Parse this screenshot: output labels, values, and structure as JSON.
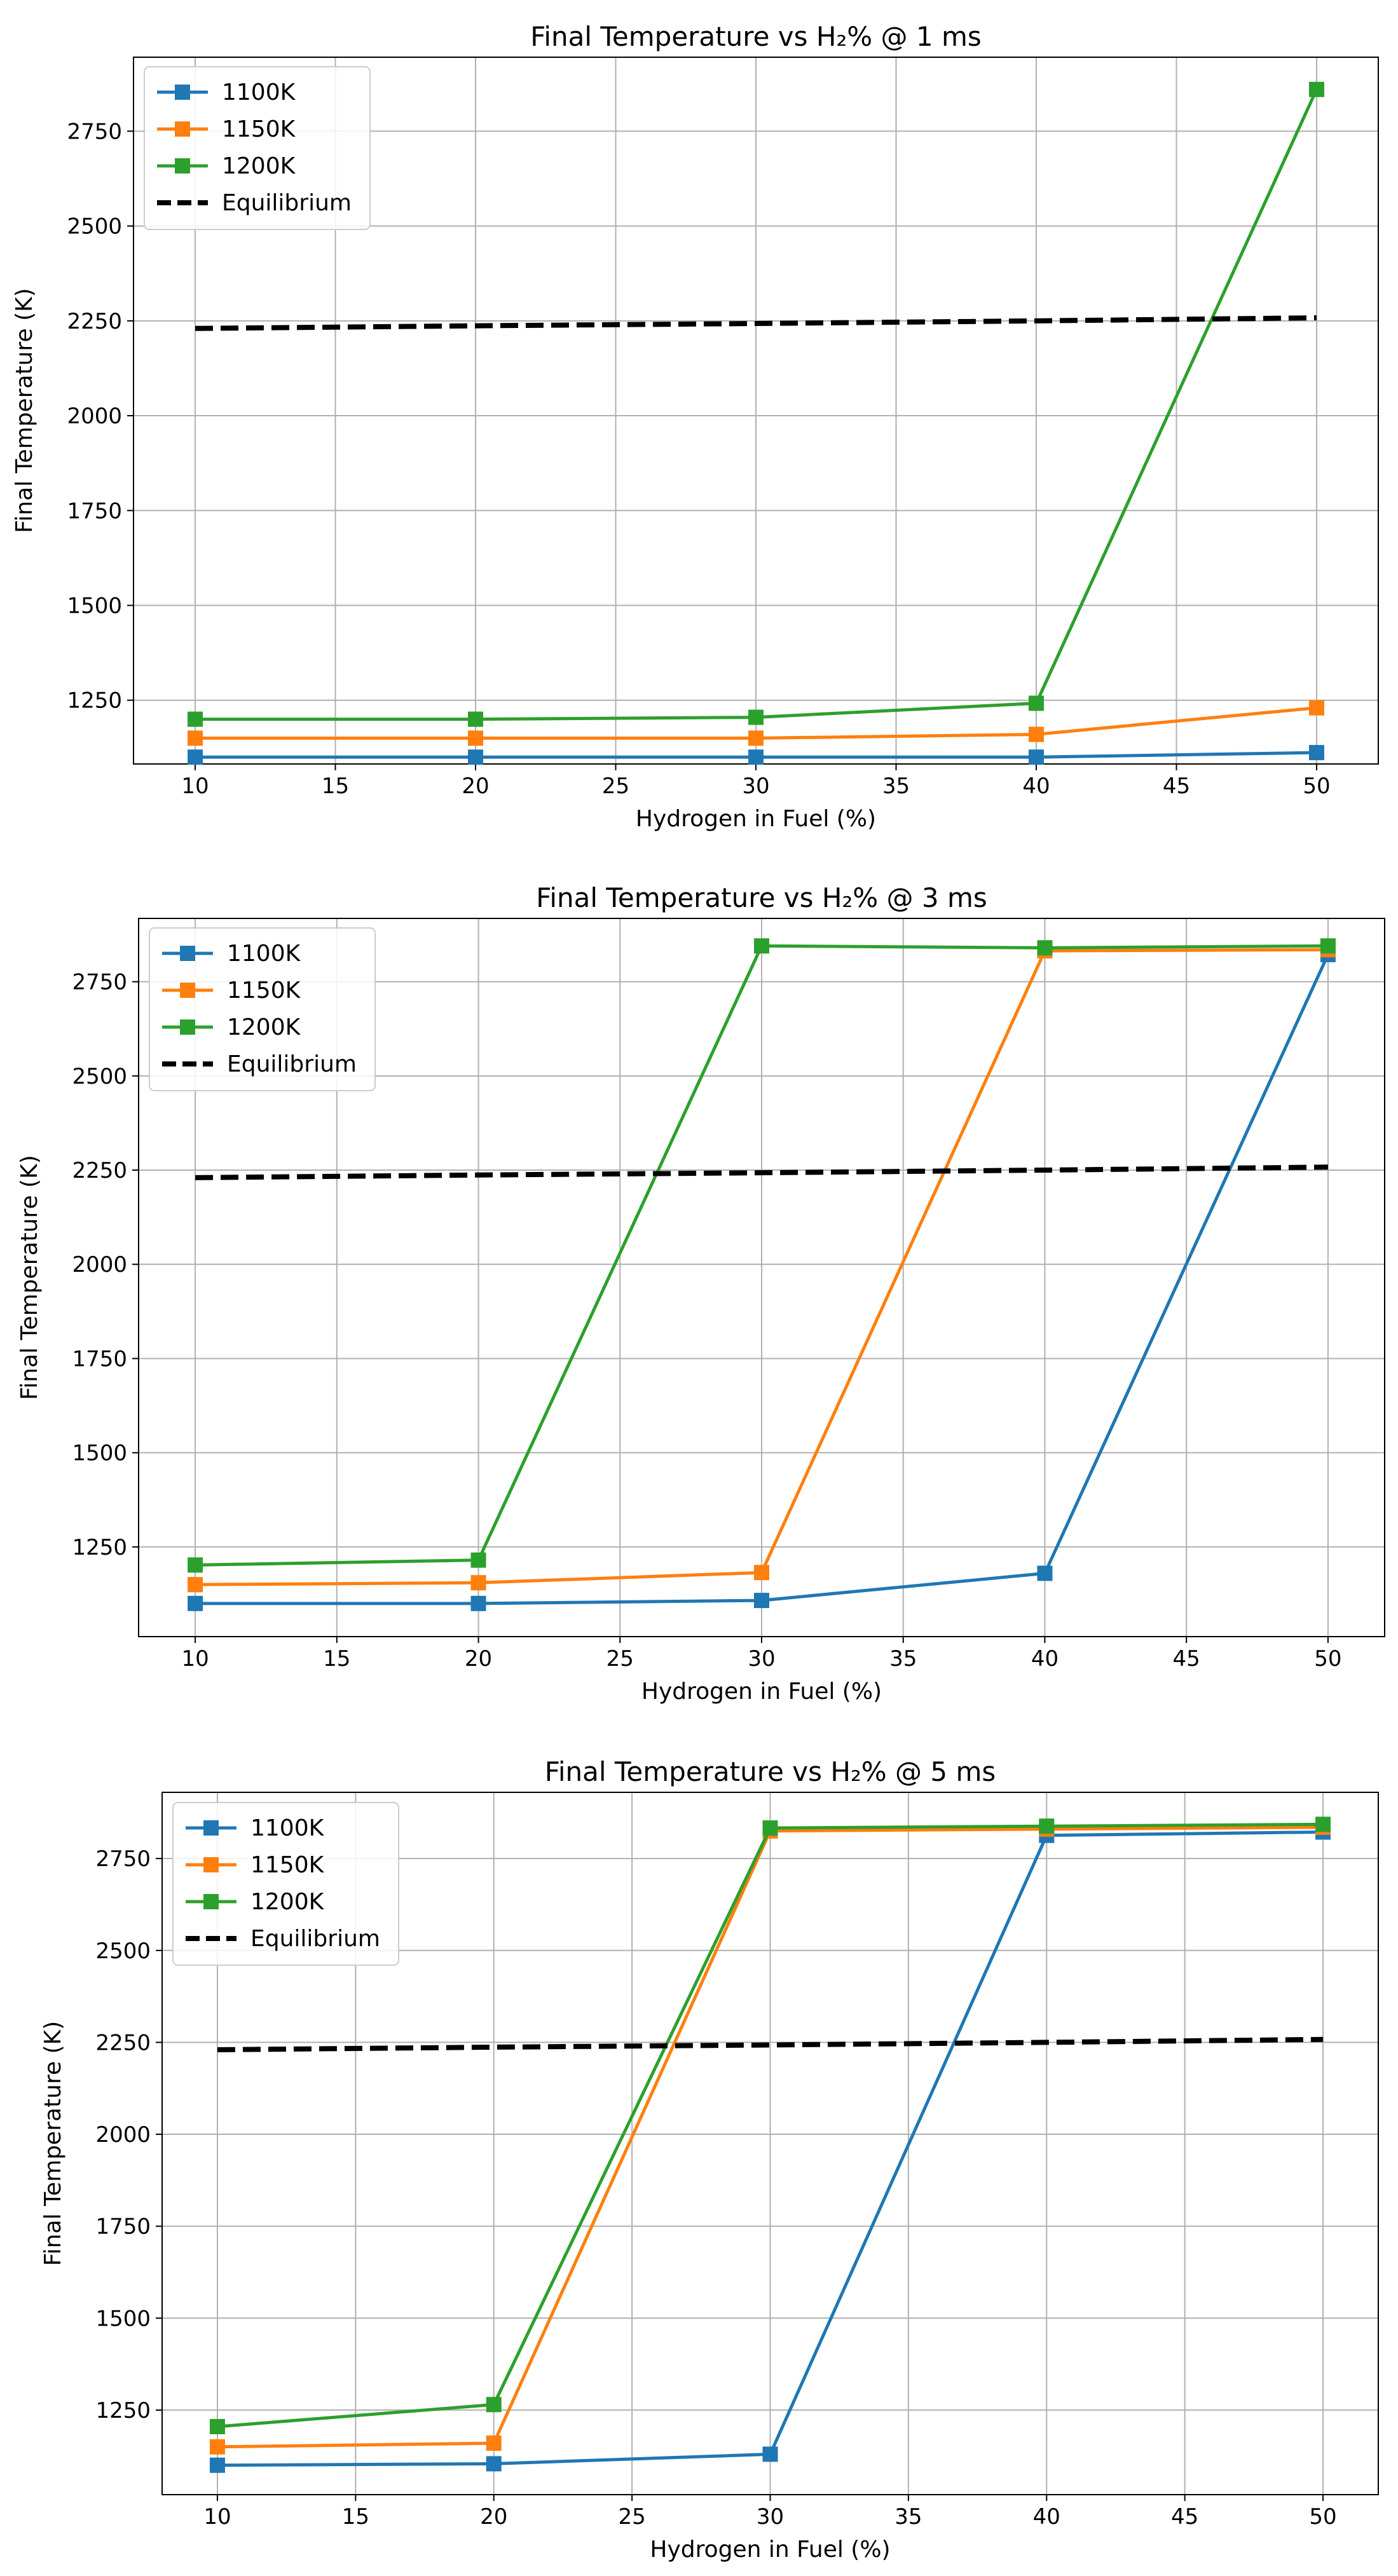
{
  "chart_data": [
    {
      "type": "line",
      "title": "Final Temperature vs H₂% @ 1 ms",
      "xlabel": "Hydrogen in Fuel (%)",
      "ylabel": "Final Temperature (K)",
      "xlim": [
        7.8,
        52.2
      ],
      "ylim": [
        1082,
        2945
      ],
      "xticks": [
        10,
        15,
        20,
        25,
        30,
        35,
        40,
        45,
        50
      ],
      "yticks": [
        1250,
        1500,
        1750,
        2000,
        2250,
        2500,
        2750
      ],
      "grid": true,
      "legend": "top-left",
      "x": [
        10,
        20,
        30,
        40,
        50
      ],
      "series": [
        {
          "name": "1100K",
          "color": "#1f77b4",
          "values": [
            1100,
            1100,
            1100,
            1100,
            1112
          ]
        },
        {
          "name": "1150K",
          "color": "#ff7f0e",
          "values": [
            1150,
            1150,
            1150,
            1160,
            1230
          ]
        },
        {
          "name": "1200K",
          "color": "#2ca02c",
          "values": [
            1200,
            1200,
            1205,
            1242,
            2860
          ]
        },
        {
          "name": "Equilibrium",
          "color": "#000000",
          "dashed": true,
          "markers": false,
          "values": [
            2230,
            2237,
            2243,
            2250,
            2258
          ]
        }
      ]
    },
    {
      "type": "line",
      "title": "Final Temperature vs H₂% @ 3 ms",
      "xlabel": "Hydrogen in Fuel (%)",
      "ylabel": "Final Temperature (K)",
      "xlim": [
        8.0,
        52.0
      ],
      "ylim": [
        1012,
        2918
      ],
      "xticks": [
        10,
        15,
        20,
        25,
        30,
        35,
        40,
        45,
        50
      ],
      "yticks": [
        1250,
        1500,
        1750,
        2000,
        2250,
        2500,
        2750
      ],
      "grid": true,
      "legend": "top-left",
      "x": [
        10,
        20,
        30,
        40,
        50
      ],
      "series": [
        {
          "name": "1100K",
          "color": "#1f77b4",
          "values": [
            1100,
            1100,
            1108,
            1180,
            2822
          ]
        },
        {
          "name": "1150K",
          "color": "#ff7f0e",
          "values": [
            1150,
            1155,
            1182,
            2832,
            2835
          ]
        },
        {
          "name": "1200K",
          "color": "#2ca02c",
          "values": [
            1202,
            1215,
            2845,
            2840,
            2845
          ]
        },
        {
          "name": "Equilibrium",
          "color": "#000000",
          "dashed": true,
          "markers": false,
          "values": [
            2230,
            2237,
            2243,
            2250,
            2258
          ]
        }
      ]
    },
    {
      "type": "line",
      "title": "Final Temperature vs H₂% @ 5 ms",
      "xlabel": "Hydrogen in Fuel (%)",
      "ylabel": "Final Temperature (K)",
      "xlim": [
        8.0,
        52.0
      ],
      "ylim": [
        1020,
        2930
      ],
      "xticks": [
        10,
        15,
        20,
        25,
        30,
        35,
        40,
        45,
        50
      ],
      "yticks": [
        1250,
        1500,
        1750,
        2000,
        2250,
        2500,
        2750
      ],
      "grid": true,
      "legend": "top-left",
      "x": [
        10,
        20,
        30,
        40,
        50
      ],
      "series": [
        {
          "name": "1100K",
          "color": "#1f77b4",
          "values": [
            1100,
            1104,
            1130,
            2813,
            2822
          ]
        },
        {
          "name": "1150K",
          "color": "#ff7f0e",
          "values": [
            1150,
            1160,
            2825,
            2830,
            2835
          ]
        },
        {
          "name": "1200K",
          "color": "#2ca02c",
          "values": [
            1205,
            1265,
            2833,
            2838,
            2843
          ]
        },
        {
          "name": "Equilibrium",
          "color": "#000000",
          "dashed": true,
          "markers": false,
          "values": [
            2230,
            2237,
            2243,
            2250,
            2258
          ]
        }
      ]
    }
  ]
}
